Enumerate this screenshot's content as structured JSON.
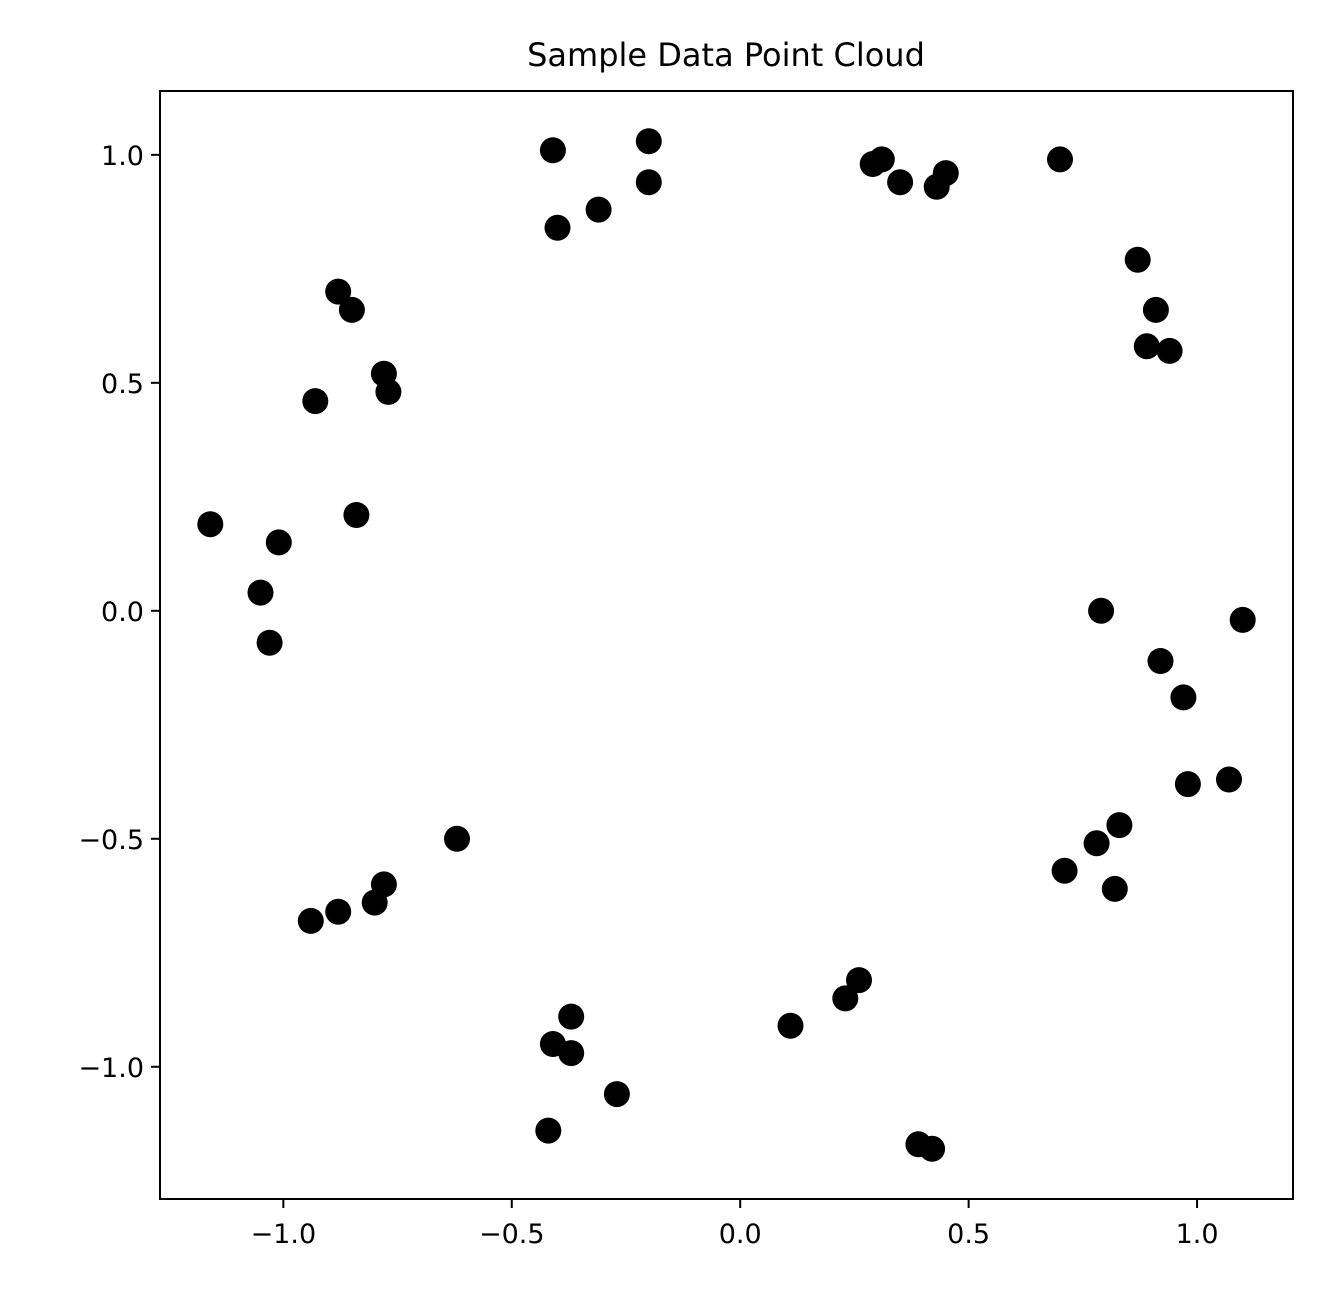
{
  "chart_data": {
    "type": "scatter",
    "title": "Sample Data Point Cloud",
    "xlabel": "",
    "ylabel": "",
    "xlim": [
      -1.27,
      1.21
    ],
    "ylim": [
      -1.29,
      1.14
    ],
    "grid": false,
    "marker_color": "#000000",
    "x_ticks": [
      {
        "value": -1.0,
        "label": "−1.0"
      },
      {
        "value": -0.5,
        "label": "−0.5"
      },
      {
        "value": 0.0,
        "label": "0.0"
      },
      {
        "value": 0.5,
        "label": "0.5"
      },
      {
        "value": 1.0,
        "label": "1.0"
      }
    ],
    "y_ticks": [
      {
        "value": 1.0,
        "label": "1.0"
      },
      {
        "value": 0.5,
        "label": "0.5"
      },
      {
        "value": 0.0,
        "label": "0.0"
      },
      {
        "value": -0.5,
        "label": "−0.5"
      },
      {
        "value": -1.0,
        "label": "−1.0"
      }
    ],
    "series": [
      {
        "points": [
          {
            "x": -0.41,
            "y": 1.01
          },
          {
            "x": -0.2,
            "y": 1.03
          },
          {
            "x": -0.2,
            "y": 0.94
          },
          {
            "x": -0.31,
            "y": 0.88
          },
          {
            "x": -0.4,
            "y": 0.84
          },
          {
            "x": 0.29,
            "y": 0.98
          },
          {
            "x": 0.31,
            "y": 0.99
          },
          {
            "x": 0.35,
            "y": 0.94
          },
          {
            "x": 0.43,
            "y": 0.93
          },
          {
            "x": 0.45,
            "y": 0.96
          },
          {
            "x": 0.7,
            "y": 0.99
          },
          {
            "x": 0.87,
            "y": 0.77
          },
          {
            "x": 0.91,
            "y": 0.66
          },
          {
            "x": 0.89,
            "y": 0.58
          },
          {
            "x": 0.94,
            "y": 0.57
          },
          {
            "x": -0.88,
            "y": 0.7
          },
          {
            "x": -0.85,
            "y": 0.66
          },
          {
            "x": -0.78,
            "y": 0.52
          },
          {
            "x": -0.77,
            "y": 0.48
          },
          {
            "x": -0.93,
            "y": 0.46
          },
          {
            "x": -0.84,
            "y": 0.21
          },
          {
            "x": -1.16,
            "y": 0.19
          },
          {
            "x": -1.01,
            "y": 0.15
          },
          {
            "x": -1.05,
            "y": 0.04
          },
          {
            "x": -1.03,
            "y": -0.07
          },
          {
            "x": 0.79,
            "y": 0.0
          },
          {
            "x": 1.1,
            "y": -0.02
          },
          {
            "x": 0.92,
            "y": -0.11
          },
          {
            "x": 0.97,
            "y": -0.19
          },
          {
            "x": 1.07,
            "y": -0.37
          },
          {
            "x": 0.98,
            "y": -0.38
          },
          {
            "x": 0.83,
            "y": -0.47
          },
          {
            "x": 0.78,
            "y": -0.51
          },
          {
            "x": 0.71,
            "y": -0.57
          },
          {
            "x": 0.82,
            "y": -0.61
          },
          {
            "x": -0.62,
            "y": -0.5
          },
          {
            "x": -0.78,
            "y": -0.6
          },
          {
            "x": -0.8,
            "y": -0.64
          },
          {
            "x": -0.88,
            "y": -0.66
          },
          {
            "x": -0.94,
            "y": -0.68
          },
          {
            "x": 0.26,
            "y": -0.81
          },
          {
            "x": 0.23,
            "y": -0.85
          },
          {
            "x": 0.11,
            "y": -0.91
          },
          {
            "x": -0.37,
            "y": -0.89
          },
          {
            "x": -0.41,
            "y": -0.95
          },
          {
            "x": -0.37,
            "y": -0.97
          },
          {
            "x": -0.27,
            "y": -1.06
          },
          {
            "x": -0.42,
            "y": -1.14
          },
          {
            "x": 0.39,
            "y": -1.17
          },
          {
            "x": 0.42,
            "y": -1.18
          }
        ]
      }
    ]
  }
}
